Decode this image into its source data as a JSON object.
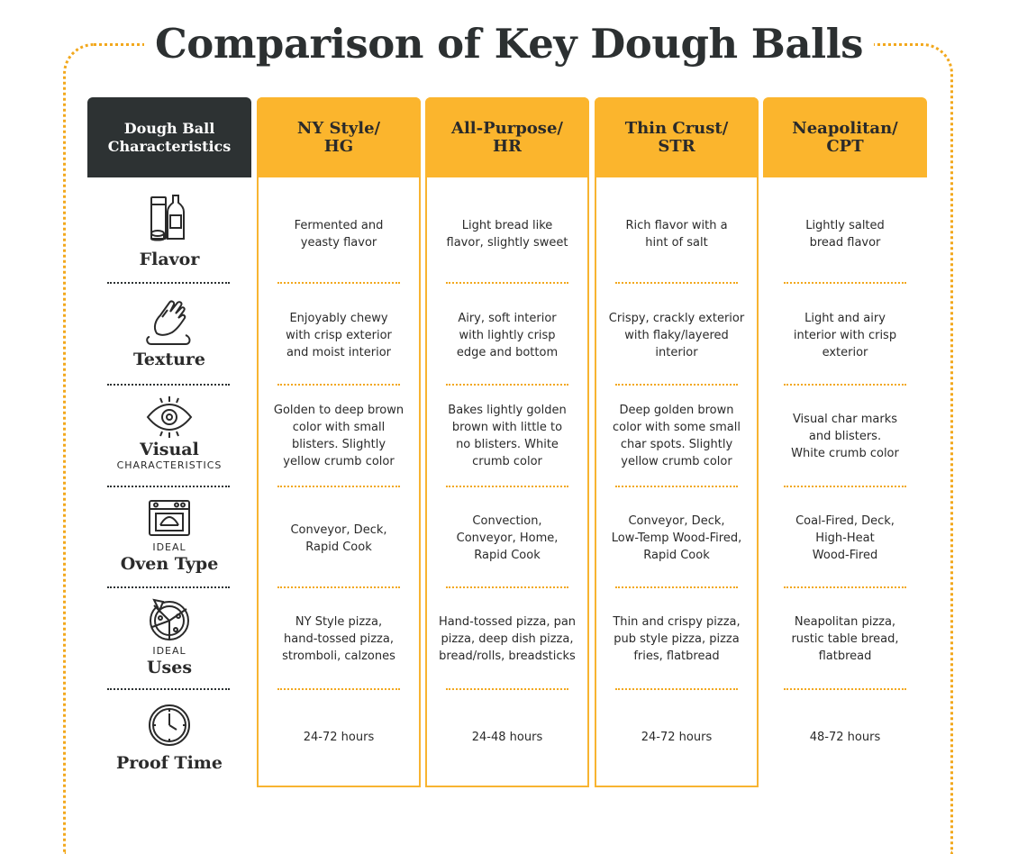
{
  "title": "Comparison of Key Dough Balls",
  "header": {
    "characteristics_line1": "Dough Ball",
    "characteristics_line2": "Characteristics",
    "columns": [
      {
        "line1": "NY Style/",
        "line2": "HG"
      },
      {
        "line1": "All-Purpose/",
        "line2": "HR"
      },
      {
        "line1": "Thin Crust/",
        "line2": "STR"
      },
      {
        "line1": "Neapolitan/",
        "line2": "CPT"
      }
    ]
  },
  "rows": [
    {
      "icon": "flavor-bottles-icon",
      "label_pre": "",
      "label": "Flavor",
      "label_sub": "",
      "cells": [
        "Fermented and\nyeasty flavor",
        "Light bread like\nflavor, slightly sweet",
        "Rich flavor with a\nhint of salt",
        "Lightly salted\nbread flavor"
      ]
    },
    {
      "icon": "texture-hand-dough-icon",
      "label_pre": "",
      "label": "Texture",
      "label_sub": "",
      "cells": [
        "Enjoyably chewy\nwith crisp exterior\nand moist interior",
        "Airy, soft interior\nwith lightly crisp\nedge and bottom",
        "Crispy, crackly exterior\nwith flaky/layered\ninterior",
        "Light and airy\ninterior with crisp\nexterior"
      ]
    },
    {
      "icon": "eye-icon",
      "label_pre": "",
      "label": "Visual",
      "label_sub": "CHARACTERISTICS",
      "cells": [
        "Golden to deep brown\ncolor with small\nblisters. Slightly\nyellow crumb color",
        "Bakes lightly golden\nbrown with little to\nno blisters. White\ncrumb color",
        "Deep golden brown\ncolor with some small\nchar spots. Slightly\nyellow crumb color",
        "Visual char marks\nand blisters.\nWhite crumb color"
      ]
    },
    {
      "icon": "oven-icon",
      "label_pre": "IDEAL",
      "label": "Oven Type",
      "label_sub": "",
      "cells": [
        "Conveyor, Deck,\nRapid Cook",
        "Convection,\nConveyor, Home,\nRapid Cook",
        "Conveyor, Deck,\nLow-Temp Wood-Fired,\nRapid Cook",
        "Coal-Fired, Deck,\nHigh-Heat\nWood-Fired"
      ]
    },
    {
      "icon": "pizza-icon",
      "label_pre": "IDEAL",
      "label": "Uses",
      "label_sub": "",
      "cells": [
        "NY Style pizza,\nhand-tossed pizza,\nstromboli, calzones",
        "Hand-tossed pizza, pan\npizza, deep dish pizza,\nbread/rolls, breadsticks",
        "Thin and crispy pizza,\npub style pizza, pizza\nfries, flatbread",
        "Neapolitan pizza,\nrustic table bread,\nflatbread"
      ]
    },
    {
      "icon": "clock-icon",
      "label_pre": "",
      "label": "Proof Time",
      "label_sub": "",
      "cells": [
        "24-72 hours",
        "24-48 hours",
        "24-72 hours",
        "48-72 hours"
      ]
    }
  ],
  "colors": {
    "gold": "#fbb52d",
    "dark": "#2d3233",
    "dots": "#f2a81d"
  }
}
